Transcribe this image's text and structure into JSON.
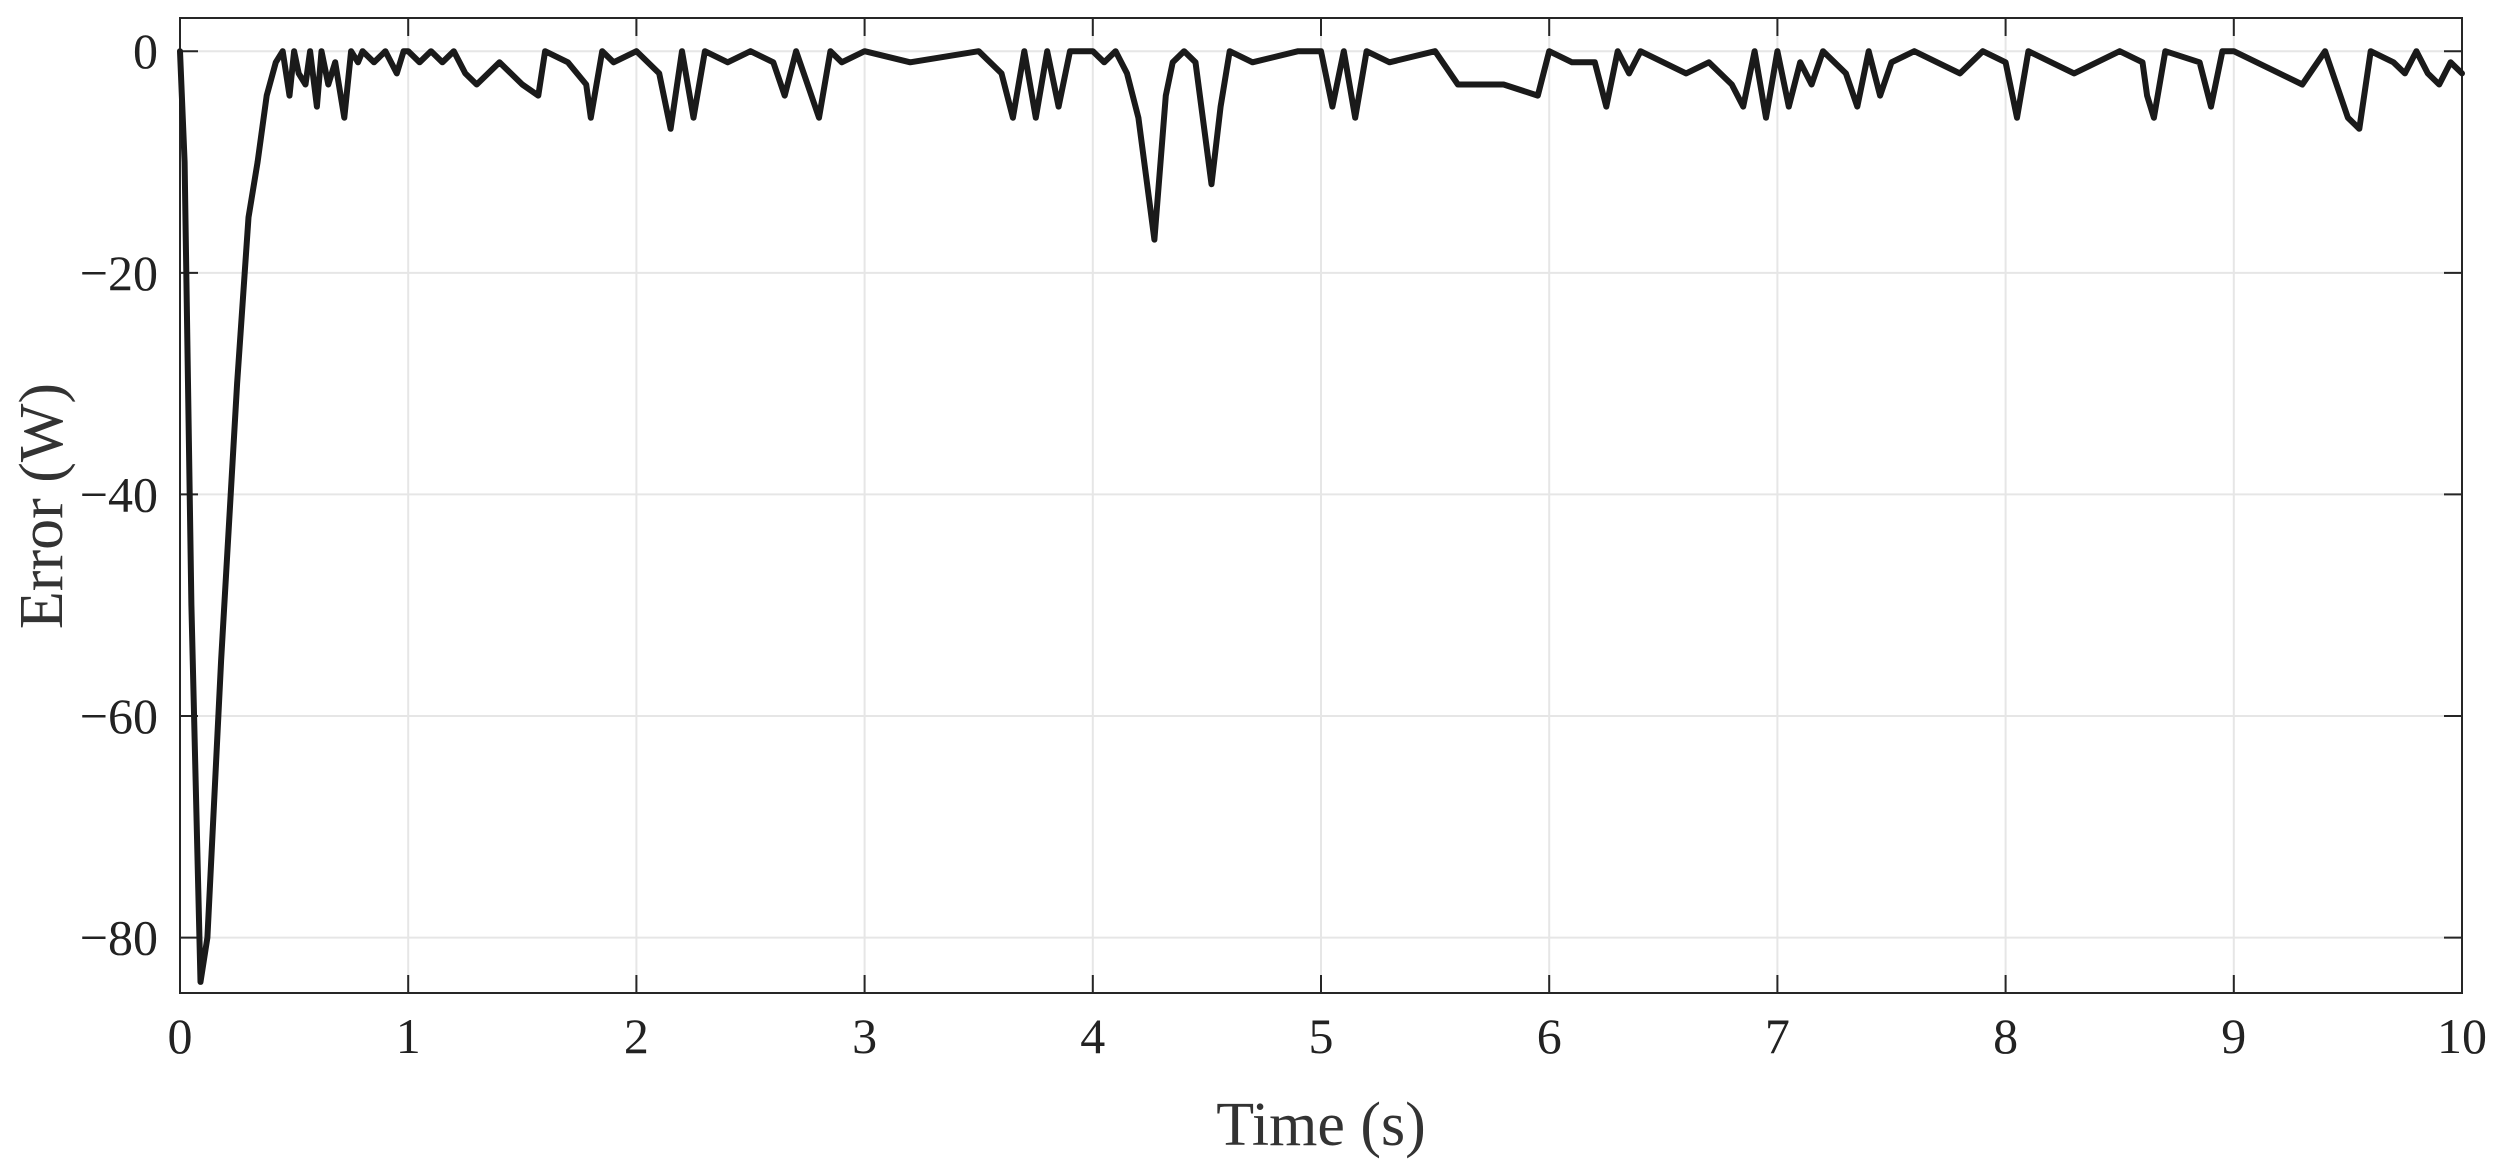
{
  "chart_data": {
    "type": "line",
    "title": "",
    "xlabel": "Time (s)",
    "ylabel": "Error (W)",
    "xlim": [
      0,
      10
    ],
    "ylim": [
      -85,
      3
    ],
    "grid": true,
    "legend": "none",
    "xticks": [
      0,
      1,
      2,
      3,
      4,
      5,
      6,
      7,
      8,
      9,
      10
    ],
    "xtick_labels": [
      "0",
      "1",
      "2",
      "3",
      "4",
      "5",
      "6",
      "7",
      "8",
      "9",
      "10"
    ],
    "yticks": [
      0,
      -20,
      -40,
      -60,
      -80
    ],
    "ytick_labels": [
      "0",
      "-20",
      "-40",
      "-60",
      "-80"
    ],
    "line_color": "#1a1a1a",
    "series": [
      {
        "x": [
          0,
          0.02,
          0.05,
          0.09,
          0.12,
          0.18,
          0.25,
          0.3,
          0.34,
          0.38,
          0.42,
          0.45,
          0.48,
          0.5,
          0.52,
          0.55,
          0.57,
          0.6,
          0.62,
          0.65,
          0.68,
          0.72,
          0.75,
          0.78,
          0.8,
          0.85,
          0.9,
          0.95,
          0.98,
          1.0,
          1.05,
          1.1,
          1.15,
          1.2,
          1.25,
          1.3,
          1.4,
          1.5,
          1.57,
          1.6,
          1.7,
          1.78,
          1.8,
          1.85,
          1.9,
          2.0,
          2.1,
          2.15,
          2.2,
          2.25,
          2.3,
          2.4,
          2.5,
          2.6,
          2.65,
          2.7,
          2.75,
          2.8,
          2.85,
          2.9,
          3.0,
          3.2,
          3.5,
          3.6,
          3.65,
          3.7,
          3.75,
          3.8,
          3.85,
          3.9,
          4.0,
          4.05,
          4.1,
          4.15,
          4.2,
          4.27,
          4.32,
          4.35,
          4.4,
          4.45,
          4.52,
          4.56,
          4.6,
          4.7,
          4.9,
          5.0,
          5.05,
          5.1,
          5.15,
          5.2,
          5.3,
          5.5,
          5.6,
          5.7,
          5.8,
          5.95,
          6.0,
          6.1,
          6.2,
          6.25,
          6.3,
          6.35,
          6.4,
          6.5,
          6.6,
          6.7,
          6.8,
          6.85,
          6.9,
          6.95,
          7.0,
          7.05,
          7.1,
          7.15,
          7.2,
          7.3,
          7.35,
          7.4,
          7.45,
          7.5,
          7.6,
          7.7,
          7.8,
          7.9,
          8.0,
          8.05,
          8.1,
          8.2,
          8.3,
          8.5,
          8.6,
          8.62,
          8.65,
          8.7,
          8.85,
          8.9,
          8.95,
          9.0,
          9.3,
          9.4,
          9.5,
          9.55,
          9.6,
          9.7,
          9.75,
          9.8,
          9.85,
          9.9,
          9.95,
          10.0
        ],
        "values": [
          0,
          -10,
          -50,
          -84,
          -80,
          -55,
          -30,
          -15,
          -10,
          -4,
          -1,
          0,
          -4,
          0,
          -2,
          -3,
          0,
          -5,
          0,
          -3,
          -1,
          -6,
          0,
          -1,
          0,
          -1,
          0,
          -2,
          0,
          0,
          -1,
          0,
          -1,
          0,
          -2,
          -3,
          -1,
          -3,
          -4,
          0,
          -1,
          -3,
          -6,
          0,
          -1,
          0,
          -2,
          -7,
          0,
          -6,
          0,
          -1,
          0,
          -1,
          -4,
          0,
          -3,
          -6,
          0,
          -1,
          0,
          -1,
          0,
          -2,
          -6,
          0,
          -6,
          0,
          -5,
          0,
          0,
          -1,
          0,
          -2,
          -6,
          -17,
          -4,
          -1,
          0,
          -1,
          -12,
          -5,
          0,
          -1,
          0,
          0,
          -5,
          0,
          -6,
          0,
          -1,
          0,
          -3,
          -3,
          -3,
          -4,
          0,
          -1,
          -1,
          -5,
          0,
          -2,
          0,
          -1,
          -2,
          -1,
          -3,
          -5,
          0,
          -6,
          0,
          -5,
          -1,
          -3,
          0,
          -2,
          -5,
          0,
          -4,
          -1,
          0,
          -1,
          -2,
          0,
          -1,
          -6,
          0,
          -1,
          -2,
          0,
          -1,
          -4,
          -6,
          0,
          -1,
          -5,
          0,
          0,
          -3,
          0,
          -6,
          -7,
          0,
          -1,
          -2,
          0,
          -2,
          -3,
          -1,
          -2
        ]
      }
    ]
  }
}
